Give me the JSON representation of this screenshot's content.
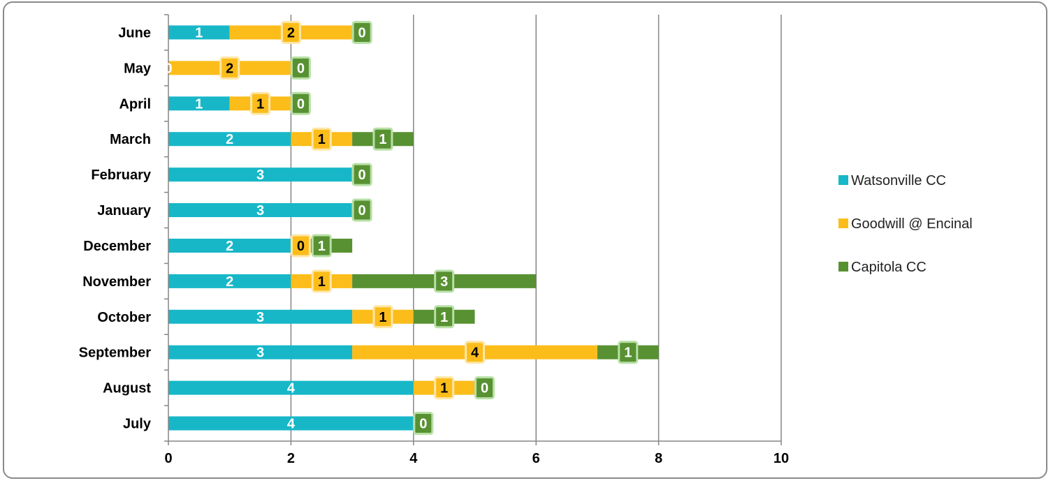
{
  "chart_data": {
    "type": "bar",
    "orientation": "horizontal",
    "stacked": true,
    "title": "",
    "xlabel": "",
    "ylabel": "",
    "xlim": [
      0,
      10
    ],
    "xticks": [
      0,
      2,
      4,
      6,
      8,
      10
    ],
    "grid": true,
    "legend_position": "right",
    "categories": [
      "June",
      "May",
      "April",
      "March",
      "February",
      "January",
      "December",
      "November",
      "October",
      "September",
      "August",
      "July"
    ],
    "series": [
      {
        "name": "Watsonville CC",
        "color": "#17B7C8",
        "values": [
          1,
          0,
          1,
          2,
          3,
          3,
          2,
          2,
          3,
          3,
          4,
          4
        ]
      },
      {
        "name": "Goodwill @ Encinal",
        "color": "#FCBD1B",
        "values": [
          2,
          2,
          1,
          1,
          0,
          0,
          0,
          1,
          1,
          4,
          1,
          0
        ]
      },
      {
        "name": "Capitola CC",
        "color": "#589132",
        "values": [
          0,
          0,
          0,
          1,
          0,
          0,
          1,
          3,
          1,
          1,
          0,
          0
        ]
      }
    ]
  }
}
